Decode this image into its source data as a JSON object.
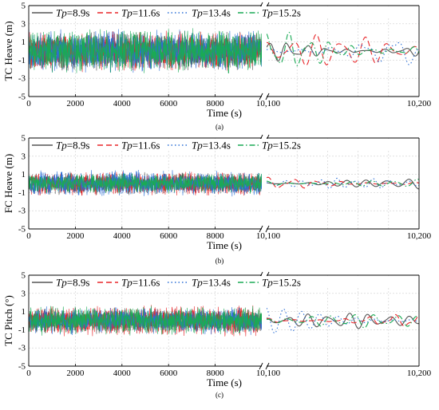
{
  "chart_data": [
    {
      "type": "line",
      "panel_label": "(a)",
      "ylabel": "TC Heave (m)",
      "xlabel": "Time (s)",
      "ylim": [
        -5,
        5
      ],
      "yticks": [
        "-5",
        "-3",
        "-1",
        "1",
        "3",
        "5"
      ],
      "left_xlim": [
        0,
        10000
      ],
      "left_xticks": [
        "0",
        "2000",
        "4000",
        "6000",
        "8000"
      ],
      "right_xlim": [
        10100,
        10200
      ],
      "right_xticks": [
        "10,100",
        "10,200"
      ],
      "grid": true,
      "legend_position": "top",
      "series": [
        {
          "name": "=8.9s",
          "color": "#555555",
          "dash": "solid",
          "noise_amplitude": 2.3,
          "right_amplitude": 1.4
        },
        {
          "name": "=11.6s",
          "color": "#e8262a",
          "dash": "long-dash",
          "noise_amplitude": 2.4,
          "right_amplitude": 1.9
        },
        {
          "name": "=13.4s",
          "color": "#2b6fd6",
          "dash": "dotted",
          "noise_amplitude": 2.5,
          "right_amplitude": 1.6
        },
        {
          "name": "=15.2s",
          "color": "#1aaa55",
          "dash": "dash-dot",
          "noise_amplitude": 2.6,
          "right_amplitude": 2.4
        }
      ]
    },
    {
      "type": "line",
      "panel_label": "(b)",
      "ylabel": "FC Heave (m)",
      "xlabel": "Time (s)",
      "ylim": [
        -5,
        5
      ],
      "yticks": [
        "-5",
        "-3",
        "-1",
        "1",
        "3",
        "5"
      ],
      "left_xlim": [
        0,
        10000
      ],
      "left_xticks": [
        "0",
        "2000",
        "4000",
        "6000",
        "8000"
      ],
      "right_xlim": [
        10100,
        10200
      ],
      "right_xticks": [
        "10,100",
        "10,200"
      ],
      "grid": true,
      "legend_position": "top",
      "series": [
        {
          "name": "=8.9s",
          "color": "#555555",
          "dash": "solid",
          "noise_amplitude": 1.3,
          "right_amplitude": 0.8
        },
        {
          "name": "=11.6s",
          "color": "#e8262a",
          "dash": "long-dash",
          "noise_amplitude": 1.4,
          "right_amplitude": 0.7
        },
        {
          "name": "=13.4s",
          "color": "#2b6fd6",
          "dash": "dotted",
          "noise_amplitude": 1.5,
          "right_amplitude": 0.6
        },
        {
          "name": "=15.2s",
          "color": "#1aaa55",
          "dash": "dash-dot",
          "noise_amplitude": 1.2,
          "right_amplitude": 0.7
        }
      ]
    },
    {
      "type": "line",
      "panel_label": "(c)",
      "ylabel": "TC Pitch (°)",
      "xlabel": "Time (s)",
      "ylim": [
        -5,
        5
      ],
      "yticks": [
        "-5",
        "-3",
        "-1",
        "1",
        "3",
        "5"
      ],
      "left_xlim": [
        0,
        10000
      ],
      "left_xticks": [
        "0",
        "2000",
        "4000",
        "6000",
        "8000"
      ],
      "right_xlim": [
        10100,
        10200
      ],
      "right_xticks": [
        "10,100",
        "10,200"
      ],
      "grid": true,
      "legend_position": "top",
      "series": [
        {
          "name": "=8.9s",
          "color": "#555555",
          "dash": "solid",
          "noise_amplitude": 1.5,
          "right_amplitude": 0.9
        },
        {
          "name": "=11.6s",
          "color": "#e8262a",
          "dash": "long-dash",
          "noise_amplitude": 1.8,
          "right_amplitude": 0.9
        },
        {
          "name": "=13.4s",
          "color": "#2b6fd6",
          "dash": "dotted",
          "noise_amplitude": 1.6,
          "right_amplitude": 2.0
        },
        {
          "name": "=15.2s",
          "color": "#1aaa55",
          "dash": "dash-dot",
          "noise_amplitude": 1.7,
          "right_amplitude": 0.8
        }
      ]
    }
  ]
}
